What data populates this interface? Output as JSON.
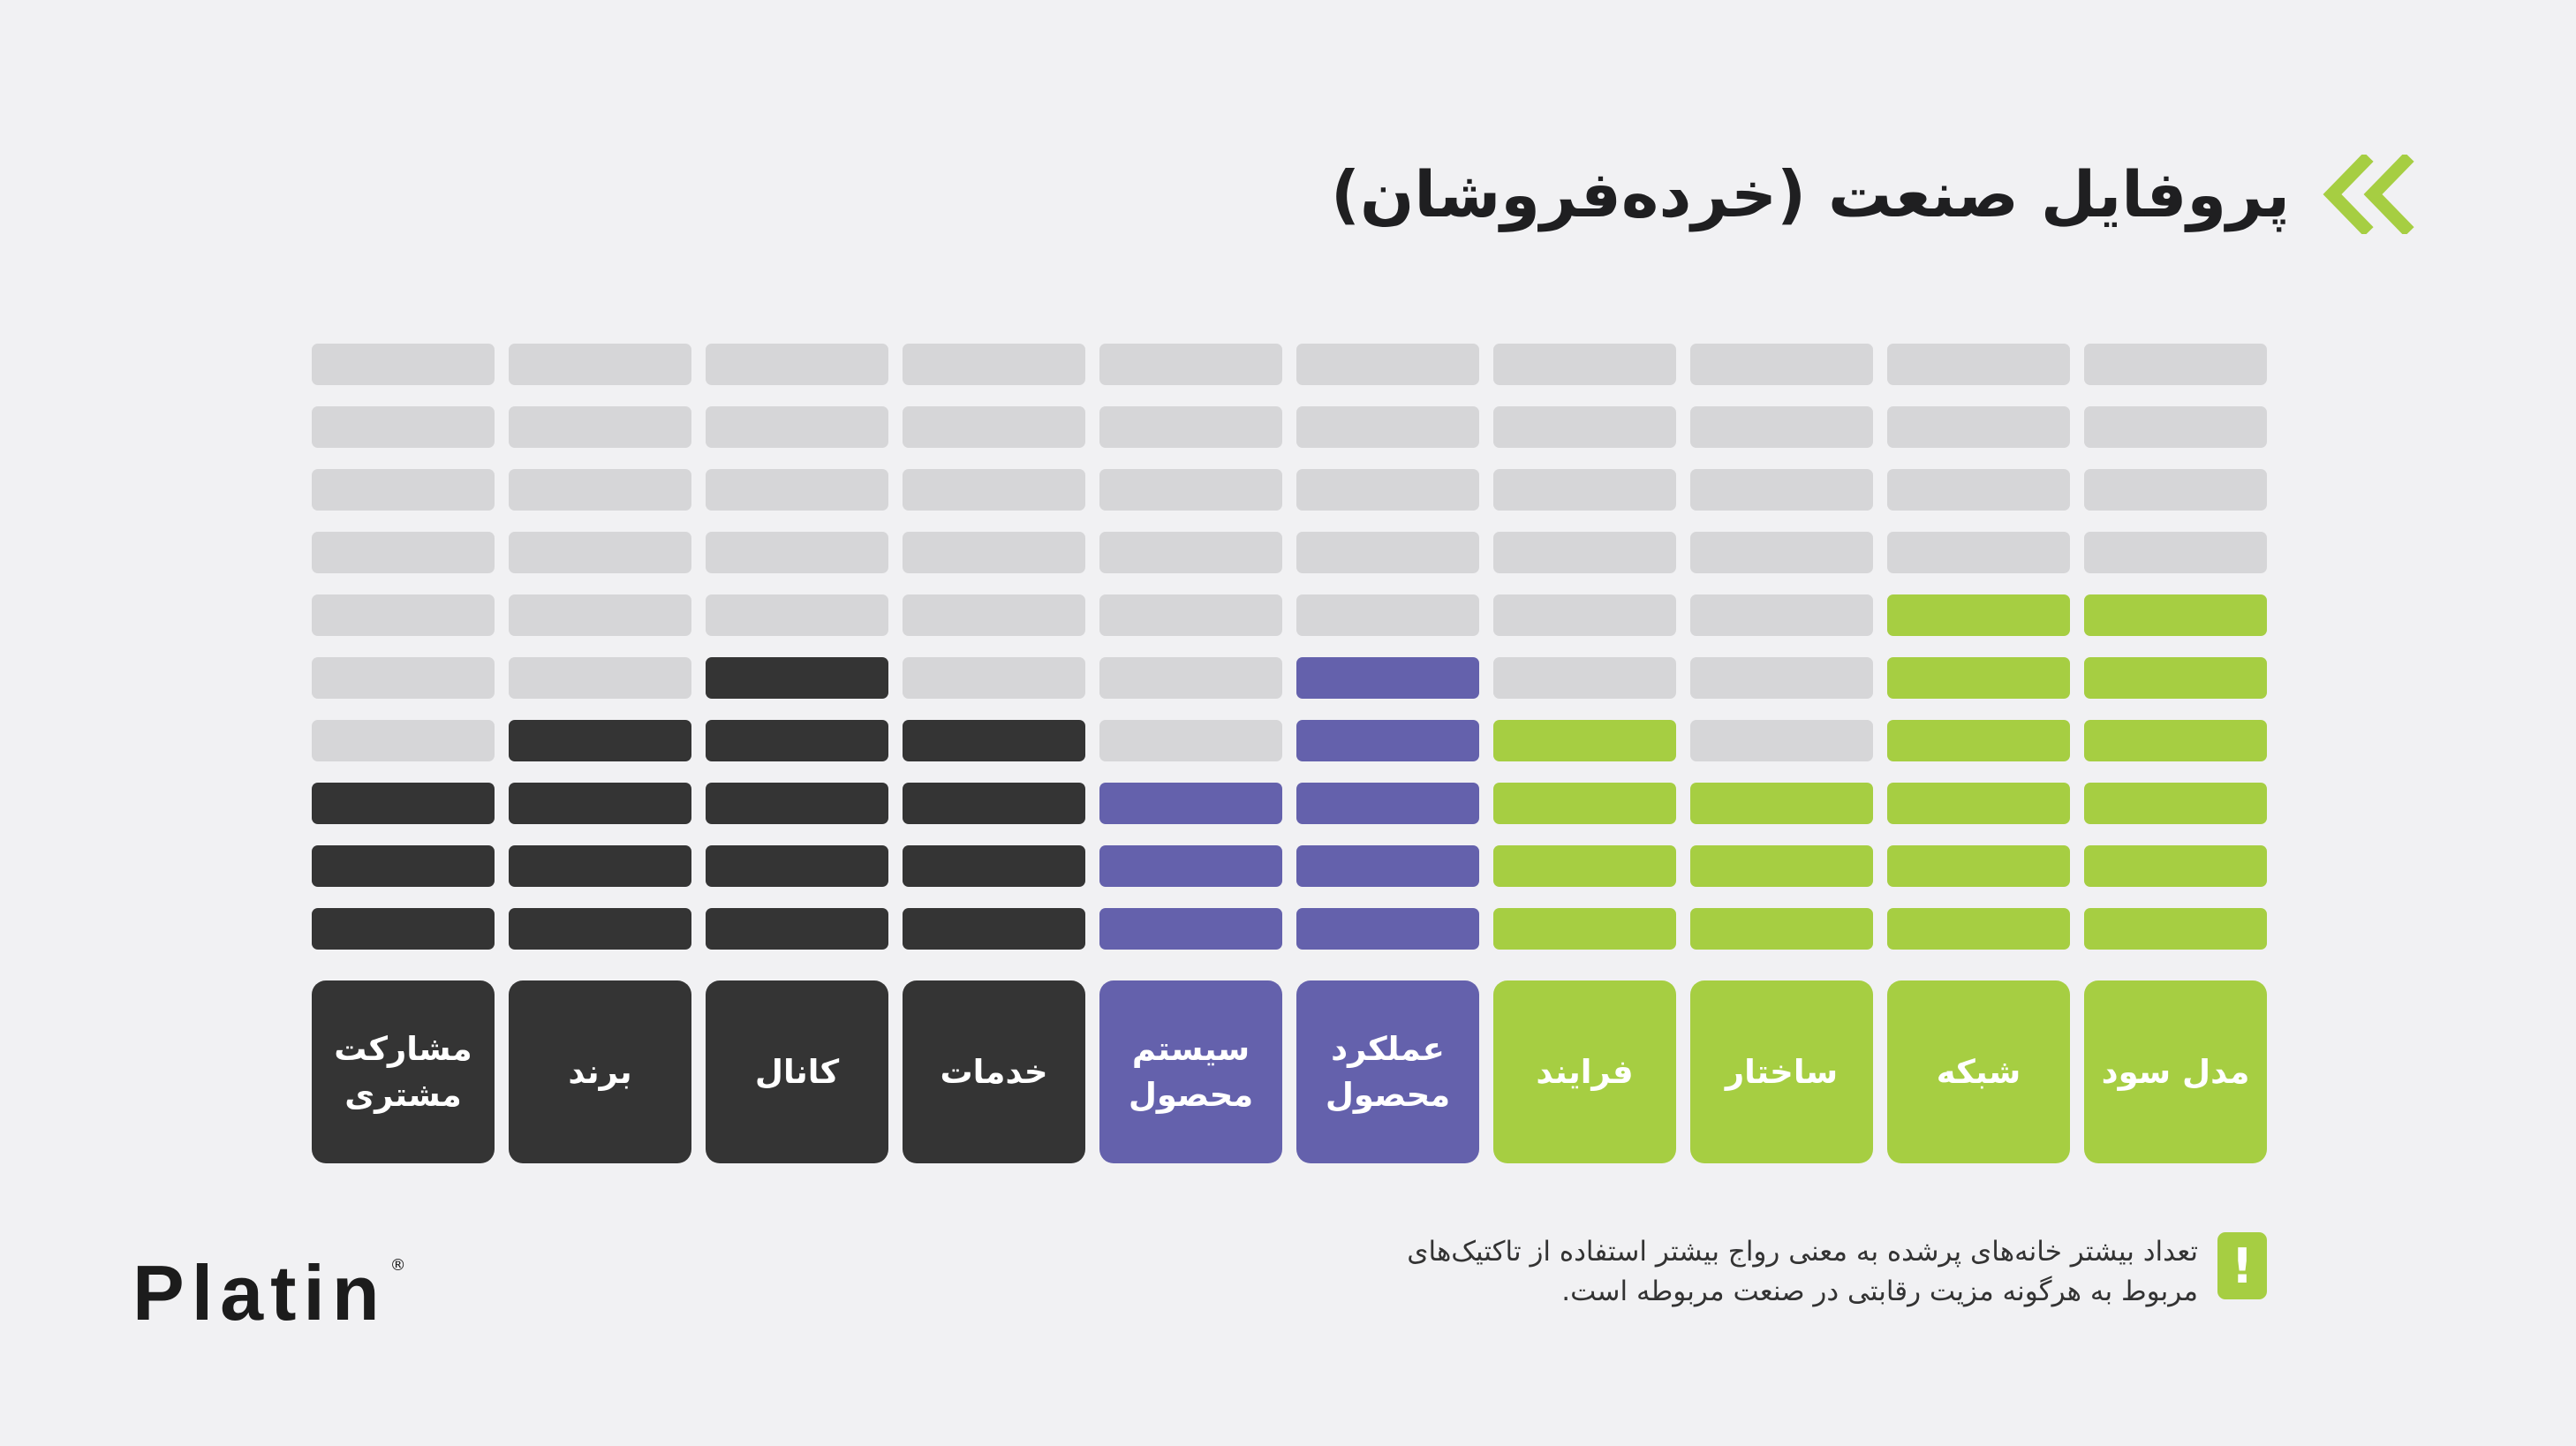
{
  "title": "پروفایل صنعت (خرده‌فروشان)",
  "note": {
    "line1": "تعداد بیشتر خانه‌های پرشده به معنی رواج بیشتر استفاده از تاکتیک‌های",
    "line2": "مربوط به هرگونه مزیت رقابتی در صنعت مربوطه است.",
    "icon_symbol": "!"
  },
  "logo": {
    "text": "Platin",
    "reg": "®"
  },
  "colors": {
    "background": "#f1f1f3",
    "empty": "#d6d6d8",
    "dark": "#343434",
    "purple": "#6461ac",
    "green": "#a6ce42"
  },
  "chart_data": {
    "type": "bar",
    "max_level": 10,
    "categories": [
      {
        "label": "مدل سود",
        "value": 6,
        "color": "#a6ce42"
      },
      {
        "label": "شبکه",
        "value": 6,
        "color": "#a6ce42"
      },
      {
        "label": "ساختار",
        "value": 3,
        "color": "#a6ce42"
      },
      {
        "label": "فرایند",
        "value": 4,
        "color": "#a6ce42"
      },
      {
        "label": "عملکرد محصول",
        "value": 5,
        "color": "#6461ac"
      },
      {
        "label": "سیستم محصول",
        "value": 3,
        "color": "#6461ac"
      },
      {
        "label": "خدمات",
        "value": 4,
        "color": "#343434"
      },
      {
        "label": "کانال",
        "value": 5,
        "color": "#343434"
      },
      {
        "label": "برند",
        "value": 4,
        "color": "#343434"
      },
      {
        "label": "مشارکت مشتری",
        "value": 3,
        "color": "#343434"
      }
    ]
  }
}
